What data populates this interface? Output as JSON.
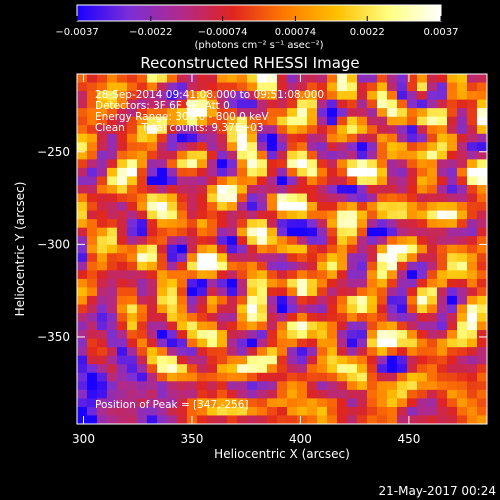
{
  "chart_data": {
    "type": "heatmap",
    "title": "Reconstructed RHESSI Image",
    "xlabel": "Heliocentric X (arcsec)",
    "ylabel": "Heliocentric Y (arcsec)",
    "x_range": [
      297,
      486
    ],
    "y_range": [
      -397,
      -208
    ],
    "x_ticks": [
      300,
      350,
      400,
      450
    ],
    "x_tick_labels": [
      "300",
      "350",
      "400",
      "450"
    ],
    "y_ticks": [
      -250,
      -300,
      -350
    ],
    "y_tick_labels": [
      "−250",
      "−300",
      "−350"
    ],
    "colorbar": {
      "min": -0.0037,
      "max": 0.0037,
      "ticks": [
        -0.0037,
        -0.0022,
        -0.00074,
        0.00074,
        0.0022,
        0.0037
      ],
      "tick_labels": [
        "−0.0037",
        "−0.0022",
        "−0.00074",
        "0.00074",
        "0.0022",
        "0.0037"
      ],
      "units": "(photons cm⁻² s⁻¹ asec⁻²)",
      "colors": [
        "#1a00ff",
        "#7a2fd6",
        "#b02a8a",
        "#e0251e",
        "#ff7a00",
        "#ffc000",
        "#ffff80",
        "#ffffff"
      ]
    },
    "annotations": {
      "time_range": "28-Sep-2014 09:41:08.000 to 09:51:08.000",
      "detectors": "Detectors: 3F 6F 9F, Att 0",
      "energy_range": "Energy Range: 300.0 - 800.0 keV",
      "method_counts": "Clean     Total counts: 9.37E+03",
      "peak": "Position of Peak = [347,-256]"
    },
    "peak": [
      347,
      -256
    ],
    "grid": false
  },
  "footer": {
    "timestamp": "21-May-2017 00:24"
  }
}
